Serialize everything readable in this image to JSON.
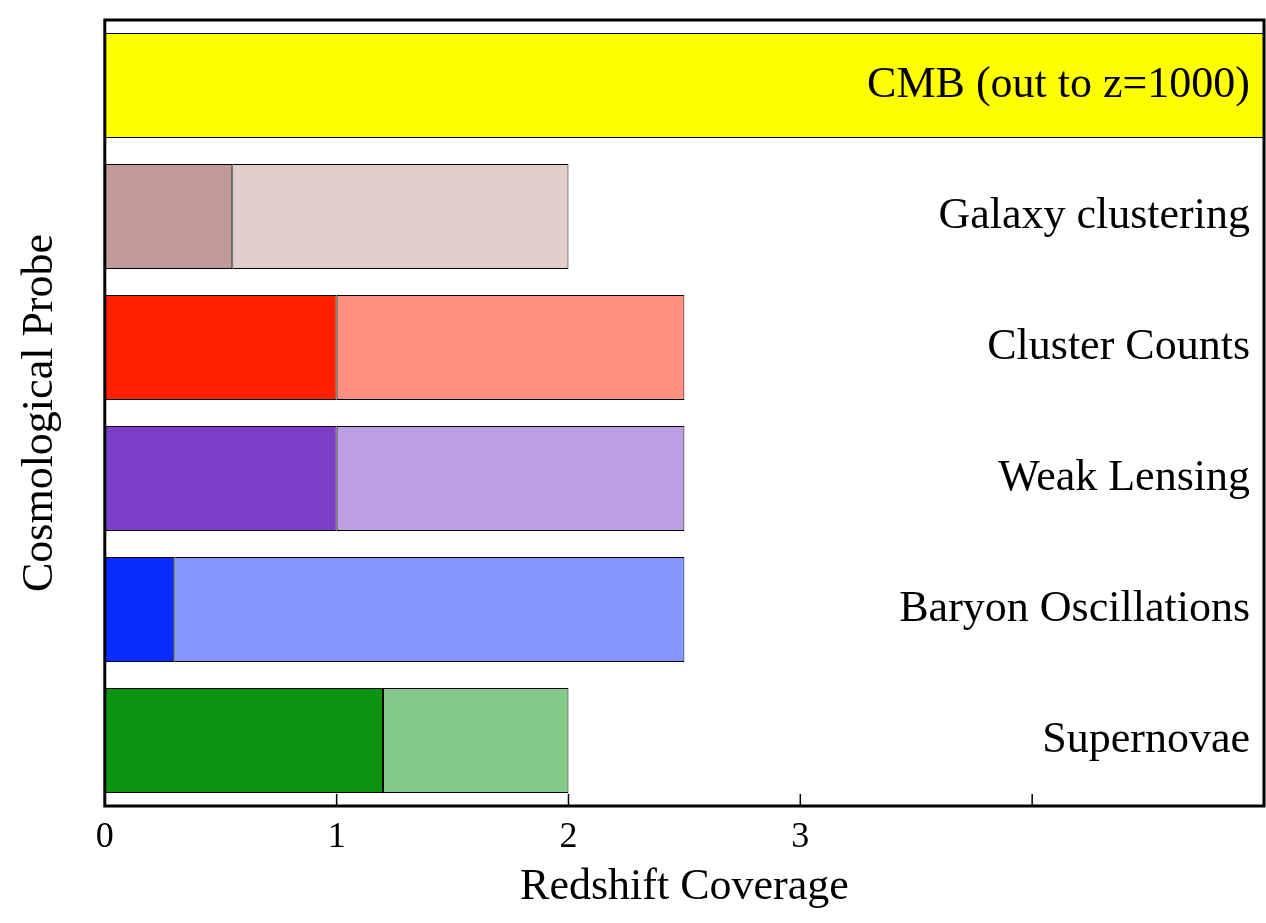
{
  "chart_data": {
    "type": "bar",
    "orientation": "horizontal",
    "stacked": true,
    "categories": [
      "CMB (out to z=1000)",
      "Galaxy clustering",
      "Cluster Counts",
      "Weak Lensing",
      "Baryon Oscillations",
      "Supernovae"
    ],
    "series": [
      {
        "colors": [
          "#ffff00",
          "#c09a98",
          "#ff2000",
          "#7b3fc8",
          "#0a2cff",
          "#0a9410"
        ],
        "values": [
          5,
          0.55,
          1,
          1,
          0.3,
          1.2
        ]
      },
      {
        "colors": [
          "#ffff80",
          "#e0cdcc",
          "#ff9080",
          "#bd9fe4",
          "#8596ff",
          "#85ca88"
        ],
        "values": [
          null,
          1.45,
          1.5,
          1.5,
          2.2,
          0.8
        ]
      }
    ],
    "xlabel": "Redshift Coverage",
    "ylabel": "Cosmological Probe",
    "xlim": [
      0,
      5
    ],
    "xticks": [
      0,
      1,
      2,
      3,
      {
        "value": 4,
        "label": null
      }
    ]
  }
}
